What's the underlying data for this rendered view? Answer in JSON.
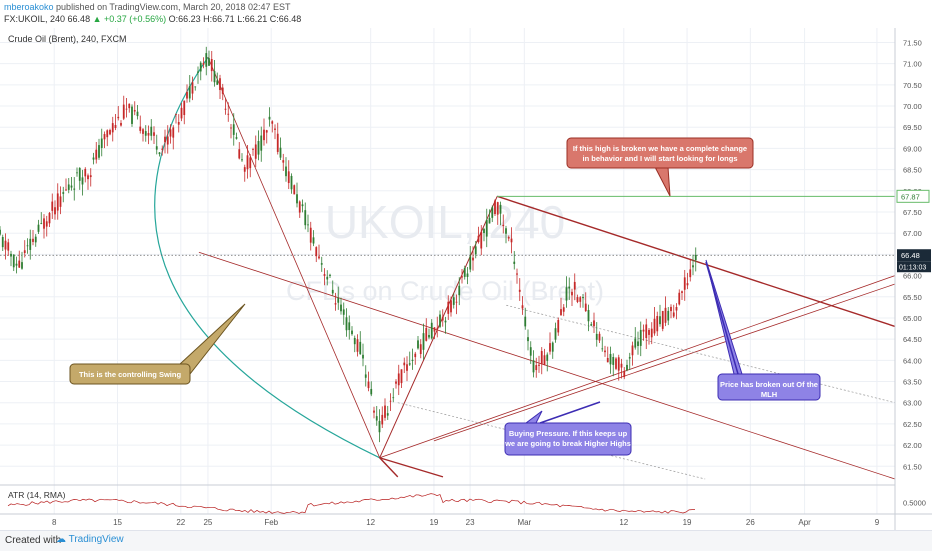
{
  "header": {
    "user": "mberoakoko",
    "published_text": "published on TradingView.com, March 20, 2018 02:47 EST",
    "quote_symbol": "FX:UKOIL, 240",
    "quote_last": "66.48",
    "quote_change": "+0.37 (+0.56%)",
    "quote_open": "O:66.23",
    "quote_high": "H:66.71",
    "quote_low": "L:66.21",
    "quote_close": "C:66.48"
  },
  "chart": {
    "legend_title": "Crude Oil (Brent), 240, FXCM",
    "watermark_symbol": "UKOIL, 240",
    "watermark_desc": "CFDs on Crude Oil (Brent)",
    "last_price_label": "66.48",
    "countdown_label": "01:13:03",
    "level_label": "67.87",
    "atr_title": "ATR (14, RMA)",
    "atr_value_label": "0.5000",
    "colors": {
      "up": "#2e7d32",
      "down": "#c62828",
      "channel": "#a52a2a",
      "arc": "#26a69a",
      "level": "#66bb6a",
      "grid": "#edf0f5"
    }
  },
  "chart_data": {
    "type": "candlestick",
    "title": "Crude Oil (Brent), 240, FXCM",
    "y_axis": {
      "range": [
        61.2,
        71.7
      ],
      "ticks": [
        "61.50",
        "62.00",
        "62.50",
        "63.00",
        "63.50",
        "64.00",
        "64.50",
        "65.00",
        "65.50",
        "66.00",
        "66.50",
        "67.00",
        "67.50",
        "68.00",
        "68.50",
        "69.00",
        "69.50",
        "70.00",
        "70.50",
        "71.00",
        "71.50"
      ]
    },
    "x_axis": {
      "ticks": [
        "8",
        "15",
        "22",
        "25",
        "Feb",
        "12",
        "19",
        "23",
        "Mar",
        "12",
        "19",
        "26",
        "Apr",
        "9"
      ],
      "range": [
        "2018-01-02",
        "2018-04-11"
      ]
    },
    "price_path": [
      [
        "2018-01-02",
        66.9
      ],
      [
        "2018-01-04",
        66.2
      ],
      [
        "2018-01-07",
        67.3
      ],
      [
        "2018-01-10",
        68.2
      ],
      [
        "2018-01-12",
        68.5
      ],
      [
        "2018-01-14",
        69.4
      ],
      [
        "2018-01-16",
        69.9
      ],
      [
        "2018-01-18",
        69.5
      ],
      [
        "2018-01-20",
        69.0
      ],
      [
        "2018-01-22",
        69.8
      ],
      [
        "2018-01-24",
        70.9
      ],
      [
        "2018-01-25",
        71.15
      ],
      [
        "2018-01-27",
        70.1
      ],
      [
        "2018-01-29",
        68.5
      ],
      [
        "2018-01-31",
        69.2
      ],
      [
        "2018-02-01",
        69.6
      ],
      [
        "2018-02-03",
        68.3
      ],
      [
        "2018-02-05",
        67.2
      ],
      [
        "2018-02-07",
        66.1
      ],
      [
        "2018-02-09",
        65.0
      ],
      [
        "2018-02-11",
        64.2
      ],
      [
        "2018-02-12",
        63.2
      ],
      [
        "2018-02-13",
        62.4
      ],
      [
        "2018-02-15",
        63.5
      ],
      [
        "2018-02-17",
        64.2
      ],
      [
        "2018-02-19",
        64.8
      ],
      [
        "2018-02-21",
        65.3
      ],
      [
        "2018-02-23",
        66.3
      ],
      [
        "2018-02-25",
        67.2
      ],
      [
        "2018-02-26",
        67.7
      ],
      [
        "2018-02-28",
        66.4
      ],
      [
        "2018-03-01",
        65.0
      ],
      [
        "2018-03-02",
        63.8
      ],
      [
        "2018-03-04",
        64.3
      ],
      [
        "2018-03-06",
        65.8
      ],
      [
        "2018-03-08",
        65.2
      ],
      [
        "2018-03-10",
        64.1
      ],
      [
        "2018-03-12",
        63.8
      ],
      [
        "2018-03-14",
        64.6
      ],
      [
        "2018-03-16",
        64.9
      ],
      [
        "2018-03-18",
        65.3
      ],
      [
        "2018-03-19",
        65.9
      ],
      [
        "2018-03-20",
        66.48
      ]
    ],
    "levels": [
      {
        "name": "high level",
        "value": 67.87
      },
      {
        "name": "last price",
        "value": 66.48
      }
    ],
    "annotations": [
      "If this high is broken we have a complete change in behavior and I will start looking for longs",
      "This is the controlling Swing",
      "Buying Pressure. If this keeps up we are going to break Higher Highs",
      "Price has broken out Of the MLH"
    ],
    "atr": {
      "name": "ATR (14, RMA)",
      "value": 0.5,
      "range": [
        0.3,
        0.8
      ]
    }
  },
  "annotations": {
    "high_note": [
      "If this high is broken we have a complete change",
      "in behavior and I will start looking for longs"
    ],
    "swing_note": "This is the controlling Swing",
    "buying_note": [
      "Buying Pressure. If this keeps up",
      "we are going to break Higher Highs"
    ],
    "breakout_note": [
      "Price has broken out Of the",
      "MLH"
    ]
  },
  "footer": {
    "created_with": "Created with",
    "brand": "TradingView"
  }
}
